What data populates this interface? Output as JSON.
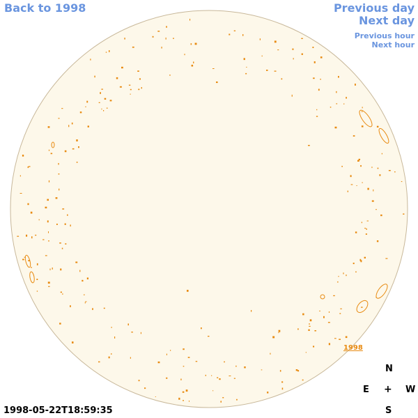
{
  "nav": {
    "back": "Back to 1998",
    "previous_day": "Previous day",
    "next_day": "Next day",
    "previous_hour": "Previous hour",
    "next_hour": "Next hour"
  },
  "timestamp": "1998-05-22T18:59:35",
  "compass": {
    "north": "N",
    "south": "S",
    "east": "E",
    "west": "W",
    "center": "+"
  },
  "disk_label": "1998",
  "colors": {
    "disk_fill": "#fdf8ea",
    "disk_edge": "#c8b89a",
    "contours": "#e88a10",
    "link": "#6a95df"
  }
}
